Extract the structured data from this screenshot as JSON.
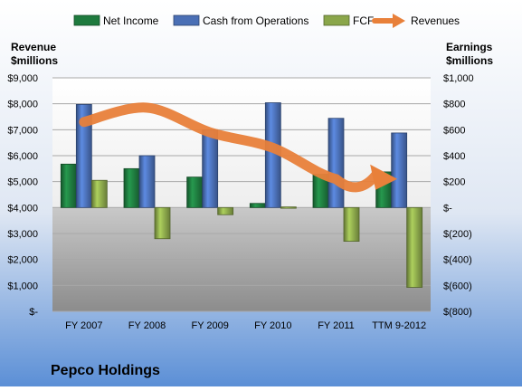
{
  "chart_data": {
    "type": "bar",
    "title": "Pepco Holdings",
    "categories": [
      "FY 2007",
      "FY 2008",
      "FY 2009",
      "FY 2010",
      "FY 2011",
      "TTM 9-2012"
    ],
    "left_axis": {
      "label_line1": "Revenue",
      "label_line2": "$millions",
      "ylim": [
        0,
        9000
      ],
      "ticks": [
        0,
        1000,
        2000,
        3000,
        4000,
        5000,
        6000,
        7000,
        8000,
        9000
      ],
      "tick_labels": [
        "$-",
        "$1,000",
        "$2,000",
        "$3,000",
        "$4,000",
        "$5,000",
        "$6,000",
        "$7,000",
        "$8,000",
        "$9,000"
      ]
    },
    "right_axis": {
      "label_line1": "Earnings",
      "label_line2": "$millions",
      "ylim": [
        -800,
        1000
      ],
      "ticks": [
        -800,
        -600,
        -400,
        -200,
        0,
        200,
        400,
        600,
        800,
        1000
      ],
      "tick_labels": [
        "$(800)",
        "$(600)",
        "$(400)",
        "$(200)",
        "$-",
        "$200",
        "$400",
        "$600",
        "$800",
        "$1,000"
      ]
    },
    "series": [
      {
        "name": "Net Income",
        "axis": "right",
        "kind": "bar",
        "color": "#1e7a3e",
        "values": [
          335,
          300,
          235,
          32,
          257,
          275
        ]
      },
      {
        "name": "Cash from Operations",
        "axis": "right",
        "kind": "bar",
        "color": "#4a6fb5",
        "values": [
          795,
          400,
          600,
          808,
          688,
          575
        ]
      },
      {
        "name": "FCF",
        "axis": "right",
        "kind": "bar",
        "color": "#8aa64a",
        "values": [
          210,
          -240,
          -55,
          5,
          -260,
          -615
        ]
      },
      {
        "name": "Revenues",
        "axis": "left",
        "kind": "arrow-line",
        "color": "#e8803a",
        "values": [
          7300,
          7850,
          6900,
          6300,
          5100,
          5100
        ]
      }
    ],
    "grid": true,
    "legend_position": "top"
  }
}
